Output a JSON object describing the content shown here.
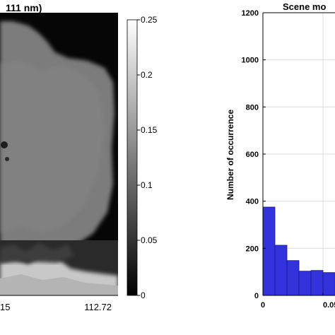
{
  "left_panel": {
    "title_fragment": "111 nm)",
    "colorbar": {
      "ticks": [
        "0.25",
        "0.2",
        "0.15",
        "0.1",
        "0.05",
        "0"
      ],
      "range": [
        0,
        0.25
      ],
      "colormap": "grayscale"
    },
    "x_tick_labels": [
      "15",
      "112.72"
    ]
  },
  "chart_data": {
    "type": "bar",
    "title": "Scene mo",
    "xlabel": "",
    "ylabel": "Number of occurrence",
    "ylim": [
      0,
      1200
    ],
    "xlim": [
      0,
      0.07
    ],
    "y_ticks": [
      0,
      200,
      400,
      600,
      800,
      1000,
      1200
    ],
    "x_tick_labels": [
      "0",
      "0.05"
    ],
    "bar_color": "#3333dd",
    "grid": true,
    "bin_width": 0.01,
    "categories": [
      "0-0.01",
      "0.01-0.02",
      "0.02-0.03",
      "0.03-0.04",
      "0.04-0.05",
      "0.05-0.06"
    ],
    "values": [
      375,
      213,
      148,
      103,
      106,
      97
    ]
  }
}
